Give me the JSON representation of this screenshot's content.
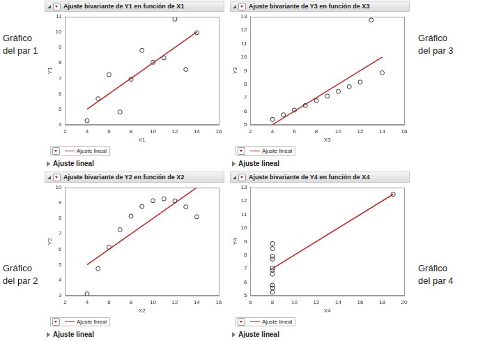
{
  "chart_data": [
    {
      "type": "scatter",
      "title": "Ajuste bivariante de Y1 en función de X1",
      "x_label": "X1",
      "y_label": "Y1",
      "annotation": "Gráfico del par 1",
      "footer": "Ajuste lineal",
      "legend": "bottom",
      "grid": false,
      "xlim": [
        2,
        16
      ],
      "xticks": [
        2,
        4,
        6,
        8,
        10,
        12,
        14,
        16
      ],
      "ylim": [
        4,
        11
      ],
      "yticks": [
        4,
        5,
        6,
        7,
        8,
        9,
        10,
        11
      ],
      "series": [
        {
          "type": "scatter",
          "marker": "circle",
          "color": "#333333",
          "x": [
            10,
            8,
            13,
            9,
            11,
            14,
            6,
            4,
            12,
            7,
            5
          ],
          "values": [
            8.04,
            6.95,
            7.58,
            8.81,
            8.33,
            9.96,
            7.24,
            4.26,
            10.84,
            4.82,
            5.68
          ]
        },
        {
          "name": "Ajuste lineal",
          "type": "line",
          "line_style": "solid",
          "color": "#cc2222",
          "x": [
            4,
            14
          ],
          "values": [
            5,
            10
          ]
        }
      ]
    },
    {
      "type": "scatter",
      "title": "Ajuste bivariante de Y3 en función de X3",
      "x_label": "X3",
      "y_label": "Y3",
      "annotation": "Gráfico del par 3",
      "footer": "Ajuste lineal",
      "legend": "bottom",
      "grid": false,
      "xlim": [
        2,
        16
      ],
      "xticks": [
        2,
        4,
        6,
        8,
        10,
        12,
        14,
        16
      ],
      "ylim": [
        5,
        13
      ],
      "yticks": [
        5,
        6,
        7,
        8,
        9,
        10,
        11,
        12,
        13
      ],
      "series": [
        {
          "type": "scatter",
          "marker": "circle",
          "color": "#333333",
          "x": [
            10,
            8,
            13,
            9,
            11,
            14,
            6,
            4,
            12,
            7,
            5
          ],
          "values": [
            7.46,
            6.77,
            12.74,
            7.11,
            7.81,
            8.84,
            6.08,
            5.39,
            8.15,
            6.42,
            5.73
          ]
        },
        {
          "name": "Ajuste lineal",
          "type": "line",
          "line_style": "solid",
          "color": "#cc2222",
          "x": [
            4,
            14
          ],
          "values": [
            5,
            10
          ]
        }
      ]
    },
    {
      "type": "scatter",
      "title": "Ajuste bivariante de Y2 en función de X2",
      "x_label": "X2",
      "y_label": "Y2",
      "annotation": "Gráfico del par 2",
      "footer": "Ajuste lineal",
      "legend": "bottom",
      "grid": false,
      "xlim": [
        2,
        16
      ],
      "xticks": [
        2,
        4,
        6,
        8,
        10,
        12,
        14,
        16
      ],
      "ylim": [
        3,
        10
      ],
      "yticks": [
        3,
        4,
        5,
        6,
        7,
        8,
        9,
        10
      ],
      "series": [
        {
          "type": "scatter",
          "marker": "circle",
          "color": "#333333",
          "x": [
            10,
            8,
            13,
            9,
            11,
            14,
            6,
            4,
            12,
            7,
            5
          ],
          "values": [
            9.14,
            8.14,
            8.74,
            8.77,
            9.26,
            8.1,
            6.13,
            3.1,
            9.13,
            7.26,
            4.74
          ]
        },
        {
          "name": "Ajuste lineal",
          "type": "line",
          "line_style": "solid",
          "color": "#cc2222",
          "x": [
            4,
            14
          ],
          "values": [
            5,
            10
          ]
        }
      ]
    },
    {
      "type": "scatter",
      "title": "Ajuste bivariante de Y4 en función de X4",
      "x_label": "X4",
      "y_label": "Y4",
      "annotation": "Gráfico del par 4",
      "footer": "Ajuste lineal",
      "legend": "bottom",
      "grid": false,
      "xlim": [
        6,
        20
      ],
      "xticks": [
        6,
        8,
        10,
        12,
        14,
        16,
        18,
        20
      ],
      "ylim": [
        5,
        13
      ],
      "yticks": [
        5,
        6,
        7,
        8,
        9,
        10,
        11,
        12,
        13
      ],
      "series": [
        {
          "type": "scatter",
          "marker": "circle",
          "color": "#333333",
          "x": [
            8,
            8,
            8,
            8,
            8,
            8,
            8,
            19,
            8,
            8,
            8
          ],
          "values": [
            6.58,
            5.76,
            7.71,
            8.84,
            8.47,
            7.04,
            5.25,
            12.5,
            5.56,
            7.91,
            6.89
          ]
        },
        {
          "name": "Ajuste lineal",
          "type": "line",
          "line_style": "solid",
          "color": "#cc2222",
          "x": [
            8,
            19
          ],
          "values": [
            7,
            12.5
          ]
        }
      ]
    }
  ]
}
